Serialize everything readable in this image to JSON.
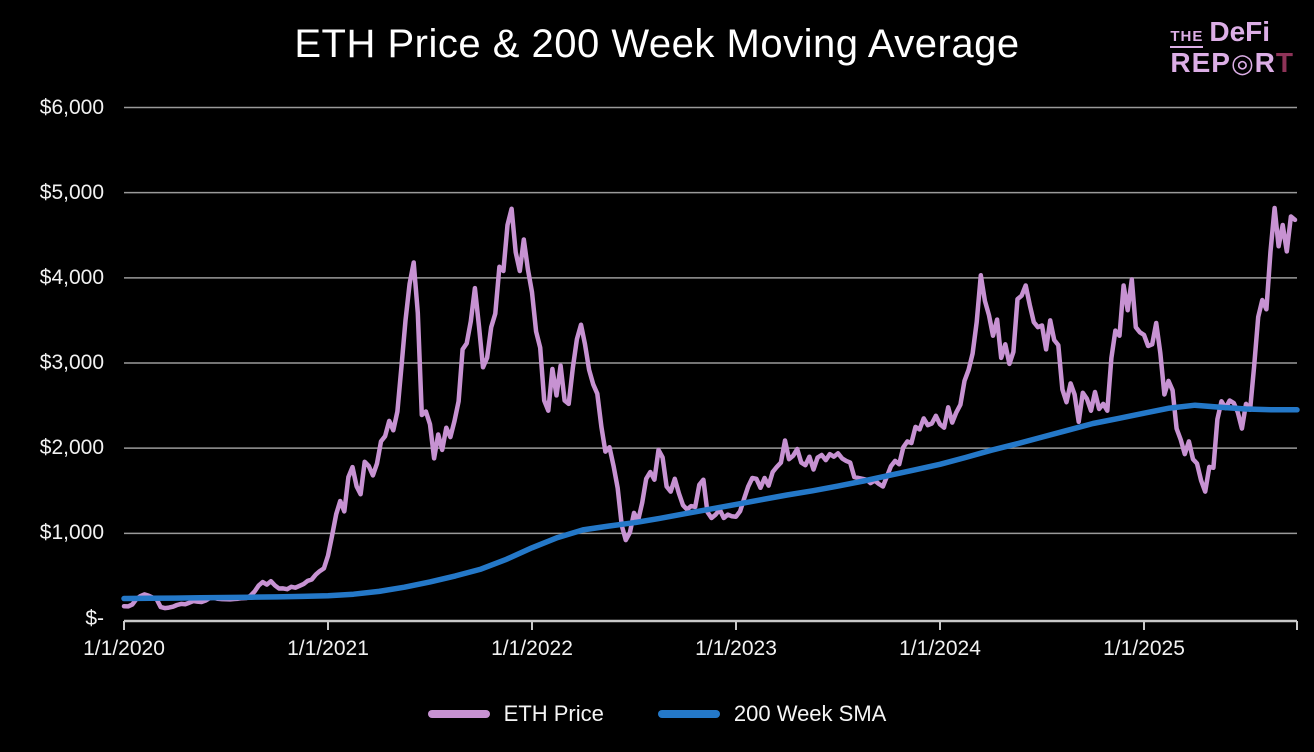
{
  "title": "ETH Price & 200 Week Moving Average",
  "logo": {
    "the": "THE",
    "defi": "DeFi",
    "rep": "REP",
    "o": "◎",
    "r": "R",
    "t": "T"
  },
  "colors": {
    "background": "#000000",
    "title_text": "#ffffff",
    "axis_text": "#f2f2f2",
    "grid": "#9a9a9a",
    "axis_line": "#c9c9c9",
    "eth": "#c792d2",
    "sma": "#2478c8",
    "logo_pink": "#dcaee6",
    "logo_accent": "#8e3358"
  },
  "legend": {
    "items": [
      {
        "label": "ETH Price",
        "color": "#c792d2"
      },
      {
        "label": "200 Week SMA",
        "color": "#2478c8"
      }
    ]
  },
  "chart_data": {
    "type": "line",
    "title": "ETH Price & 200 Week Moving Average",
    "grid": true,
    "legend_position": "bottom",
    "x_axis": {
      "range": [
        2020.0,
        2025.75
      ],
      "tick_values": [
        2020,
        2021,
        2022,
        2023,
        2024,
        2025
      ],
      "tick_labels": [
        "1/1/2020",
        "1/1/2021",
        "1/1/2022",
        "1/1/2023",
        "1/1/2024",
        "1/1/2025"
      ]
    },
    "y_axis": {
      "range": [
        0,
        6000
      ],
      "tick_values": [
        0,
        1000,
        2000,
        3000,
        4000,
        5000,
        6000
      ],
      "tick_labels": [
        "$-",
        "$1,000",
        "$2,000",
        "$3,000",
        "$4,000",
        "$5,000",
        "$6,000"
      ]
    },
    "series": [
      {
        "name": "ETH Price",
        "color": "#c792d2",
        "stroke_width": 4.5,
        "x_start": 2020.0,
        "x_step": 0.02,
        "values": [
          145,
          142,
          163,
          225,
          262,
          283,
          268,
          245,
          228,
          134,
          122,
          128,
          138,
          158,
          172,
          168,
          186,
          206,
          198,
          194,
          211,
          240,
          244,
          231,
          228,
          226,
          224,
          229,
          232,
          238,
          241,
          268,
          317,
          386,
          427,
          398,
          438,
          388,
          352,
          354,
          344,
          372,
          362,
          383,
          404,
          442,
          458,
          516,
          556,
          588,
          737,
          975,
          1225,
          1380,
          1258,
          1660,
          1778,
          1552,
          1460,
          1840,
          1790,
          1680,
          1820,
          2080,
          2140,
          2320,
          2210,
          2430,
          2950,
          3500,
          3930,
          4180,
          3590,
          2390,
          2430,
          2280,
          1880,
          2160,
          1980,
          2240,
          2130,
          2320,
          2550,
          3160,
          3230,
          3490,
          3880,
          3430,
          2950,
          3060,
          3420,
          3580,
          4130,
          4080,
          4620,
          4810,
          4300,
          4080,
          4450,
          4100,
          3830,
          3370,
          3180,
          2560,
          2440,
          2930,
          2620,
          2970,
          2560,
          2520,
          2940,
          3280,
          3450,
          3220,
          2920,
          2750,
          2640,
          2250,
          1960,
          2010,
          1790,
          1530,
          1090,
          920,
          1010,
          1240,
          1150,
          1360,
          1640,
          1720,
          1630,
          1980,
          1890,
          1550,
          1490,
          1640,
          1470,
          1330,
          1280,
          1320,
          1310,
          1570,
          1630,
          1250,
          1180,
          1220,
          1280,
          1180,
          1220,
          1200,
          1195,
          1260,
          1410,
          1550,
          1650,
          1640,
          1535,
          1650,
          1560,
          1720,
          1780,
          1830,
          2090,
          1870,
          1910,
          1990,
          1830,
          1800,
          1900,
          1750,
          1890,
          1920,
          1860,
          1930,
          1900,
          1940,
          1880,
          1850,
          1830,
          1660,
          1650,
          1640,
          1630,
          1590,
          1620,
          1580,
          1550,
          1670,
          1790,
          1850,
          1810,
          2010,
          2080,
          2060,
          2250,
          2220,
          2350,
          2270,
          2290,
          2380,
          2280,
          2240,
          2480,
          2300,
          2420,
          2510,
          2790,
          2920,
          3110,
          3480,
          4030,
          3730,
          3560,
          3320,
          3510,
          3060,
          3220,
          2990,
          3130,
          3750,
          3790,
          3910,
          3680,
          3480,
          3420,
          3440,
          3160,
          3500,
          3270,
          3210,
          2690,
          2540,
          2760,
          2630,
          2310,
          2650,
          2580,
          2440,
          2660,
          2460,
          2520,
          2440,
          3060,
          3380,
          3320,
          3910,
          3620,
          3980,
          3420,
          3360,
          3330,
          3200,
          3220,
          3470,
          3120,
          2630,
          2790,
          2680,
          2230,
          2100,
          1930,
          2080,
          1870,
          1820,
          1620,
          1490,
          1780,
          1770,
          2340,
          2550,
          2470,
          2560,
          2530,
          2420,
          2230,
          2520,
          2450,
          2970,
          3540,
          3740,
          3630,
          4310,
          4820,
          4370,
          4620,
          4310,
          4720,
          4680
        ]
      },
      {
        "name": "200 Week SMA",
        "color": "#2478c8",
        "stroke_width": 5.5,
        "x_start": 2020.0,
        "x_step": 0.125,
        "values": [
          235,
          237,
          240,
          243,
          246,
          250,
          254,
          259,
          266,
          285,
          318,
          368,
          430,
          500,
          580,
          695,
          830,
          950,
          1040,
          1085,
          1125,
          1175,
          1230,
          1285,
          1340,
          1395,
          1450,
          1500,
          1555,
          1615,
          1680,
          1745,
          1810,
          1890,
          1975,
          2050,
          2130,
          2210,
          2290,
          2350,
          2410,
          2470,
          2505,
          2480,
          2460,
          2450,
          2450
        ]
      }
    ]
  }
}
